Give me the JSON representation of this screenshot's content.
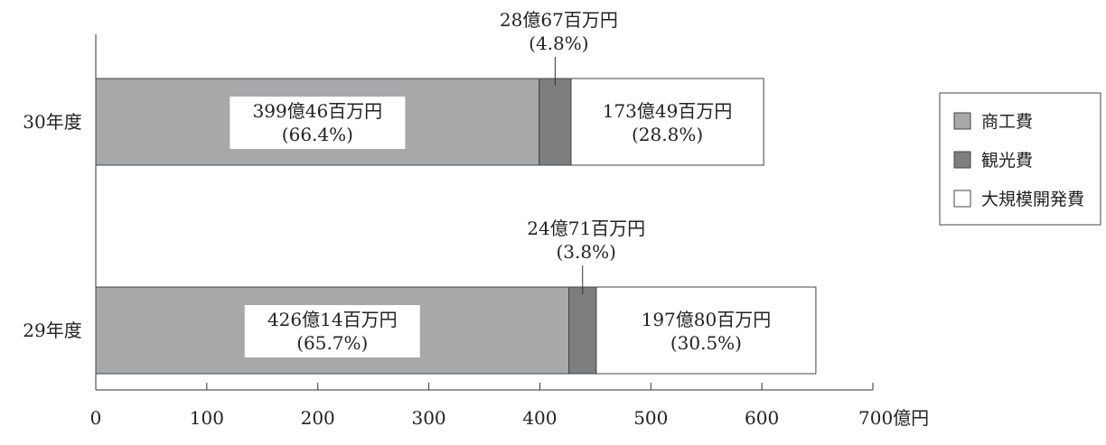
{
  "chart_data": {
    "type": "bar",
    "orientation": "horizontal",
    "stacked": true,
    "title": "",
    "xlabel": "",
    "ylabel": "",
    "x_unit": "億円",
    "xlim": [
      0,
      700
    ],
    "x_ticks": [
      0,
      100,
      200,
      300,
      400,
      500,
      600,
      700
    ],
    "grid": false,
    "legend_position": "right",
    "categories": [
      "30年度",
      "29年度"
    ],
    "series": [
      {
        "name": "商工費",
        "color": "#a7a8aa",
        "values": [
          399.46,
          426.14
        ],
        "labels": [
          "399億46百万円",
          "426億14百万円"
        ],
        "percents": [
          "(66.4%)",
          "(65.7%)"
        ]
      },
      {
        "name": "観光費",
        "color": "#7d7e80",
        "values": [
          28.67,
          24.71
        ],
        "labels": [
          "28億67百万円",
          "24億71百万円"
        ],
        "percents": [
          "(4.8%)",
          "(3.8%)"
        ]
      },
      {
        "name": "大規模開発費",
        "color": "#ffffff",
        "values": [
          173.49,
          197.8
        ],
        "labels": [
          "173億49百万円",
          "197億80百万円"
        ],
        "percents": [
          "(28.8%)",
          "(30.5%)"
        ]
      }
    ]
  }
}
